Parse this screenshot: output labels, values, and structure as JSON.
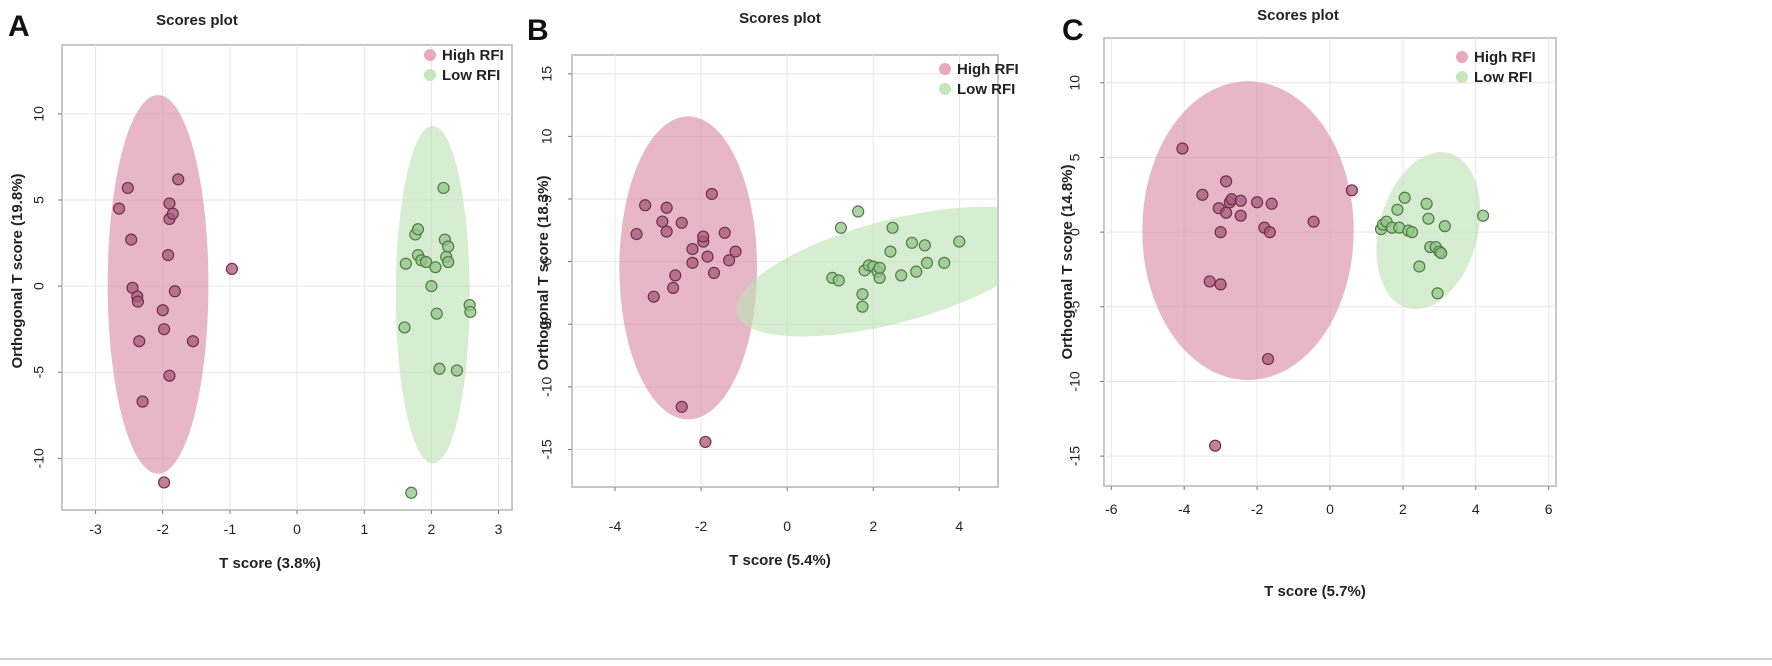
{
  "colors": {
    "high_fill": "#d98aa5",
    "high_point": "#a85a78",
    "high_point_stroke": "#6e2f4a",
    "low_fill": "#bfe2b4",
    "low_point": "#93c488",
    "low_point_stroke": "#4f7c47",
    "legend_high": "#e7a9bd",
    "legend_low": "#c5e6bb"
  },
  "chart_data": [
    {
      "type": "scatter",
      "panel": "A",
      "title": "Scores plot",
      "xlabel": "T score (3.8%)",
      "ylabel": "Orthogonal T score (19.8%)",
      "xlim": [
        -3.5,
        3.2
      ],
      "ylim": [
        -13,
        14
      ],
      "xticks": [
        -3,
        -2,
        -1,
        0,
        1,
        2,
        3
      ],
      "yticks": [
        -10,
        -5,
        0,
        5,
        10
      ],
      "xtick_labels": [
        "-3",
        "-2",
        "-1",
        "0",
        "1",
        "2",
        "3"
      ],
      "ytick_labels": [
        "-10",
        "-5",
        "0",
        "5",
        "10"
      ],
      "grid": true,
      "legend_position": "top-right",
      "series": [
        {
          "name": "High RFI",
          "ellipse": {
            "cx": -2.07,
            "cy": 0.1,
            "rx": 0.75,
            "ry": 11.0,
            "angle": 0
          },
          "points": [
            [
              -2.65,
              4.5
            ],
            [
              -2.52,
              5.7
            ],
            [
              -2.47,
              2.7
            ],
            [
              -2.45,
              -0.1
            ],
            [
              -2.38,
              -0.6
            ],
            [
              -2.37,
              -0.9
            ],
            [
              -2.35,
              -3.2
            ],
            [
              -2.3,
              -6.7
            ],
            [
              -2.0,
              -1.4
            ],
            [
              -1.98,
              -2.5
            ],
            [
              -1.9,
              -5.2
            ],
            [
              -1.92,
              1.8
            ],
            [
              -1.9,
              3.9
            ],
            [
              -1.9,
              4.8
            ],
            [
              -1.85,
              4.2
            ],
            [
              -1.82,
              -0.3
            ],
            [
              -1.77,
              6.2
            ],
            [
              -1.55,
              -3.2
            ],
            [
              -1.98,
              -11.4
            ],
            [
              -0.97,
              1.0
            ]
          ]
        },
        {
          "name": "Low RFI",
          "ellipse": {
            "cx": 2.02,
            "cy": -0.5,
            "rx": 0.55,
            "ry": 9.8,
            "angle": 0
          },
          "points": [
            [
              1.6,
              -2.4
            ],
            [
              1.62,
              1.3
            ],
            [
              1.7,
              -12.0
            ],
            [
              1.76,
              3.0
            ],
            [
              1.8,
              3.3
            ],
            [
              1.8,
              1.8
            ],
            [
              1.85,
              1.5
            ],
            [
              1.92,
              1.4
            ],
            [
              2.0,
              0.0
            ],
            [
              2.06,
              1.1
            ],
            [
              2.08,
              -1.6
            ],
            [
              2.12,
              -4.8
            ],
            [
              2.18,
              5.7
            ],
            [
              2.2,
              2.7
            ],
            [
              2.22,
              1.7
            ],
            [
              2.25,
              2.3
            ],
            [
              2.25,
              1.4
            ],
            [
              2.38,
              -4.9
            ],
            [
              2.57,
              -1.1
            ],
            [
              2.58,
              -1.5
            ]
          ]
        }
      ]
    },
    {
      "type": "scatter",
      "panel": "B",
      "title": "Scores plot",
      "xlabel": "T score (5.4%)",
      "ylabel": "Orthogonal T score (18.3%)",
      "xlim": [
        -5,
        4.9
      ],
      "ylim": [
        -18,
        16.5
      ],
      "xticks": [
        -4,
        -2,
        0,
        2,
        4
      ],
      "yticks": [
        -15,
        -10,
        -5,
        0,
        5,
        10,
        15
      ],
      "xtick_labels": [
        "-4",
        "-2",
        "0",
        "2",
        "4"
      ],
      "ytick_labels": [
        "-15",
        "-10",
        "-5",
        "0",
        "5",
        "10",
        "15"
      ],
      "grid": true,
      "legend_position": "top-right",
      "series": [
        {
          "name": "High RFI",
          "ellipse": {
            "cx": -2.3,
            "cy": -0.5,
            "rx": 1.6,
            "ry": 12.1,
            "angle": 0
          },
          "points": [
            [
              -3.5,
              2.2
            ],
            [
              -3.3,
              4.5
            ],
            [
              -3.1,
              -2.8
            ],
            [
              -2.9,
              3.2
            ],
            [
              -2.8,
              4.3
            ],
            [
              -2.8,
              2.4
            ],
            [
              -2.6,
              -1.1
            ],
            [
              -2.65,
              -2.1
            ],
            [
              -2.45,
              3.1
            ],
            [
              -2.45,
              -11.6
            ],
            [
              -2.2,
              1.0
            ],
            [
              -2.2,
              -0.1
            ],
            [
              -1.95,
              1.6
            ],
            [
              -1.95,
              2.0
            ],
            [
              -1.85,
              0.4
            ],
            [
              -1.75,
              5.4
            ],
            [
              -1.7,
              -0.9
            ],
            [
              -1.45,
              2.3
            ],
            [
              -1.35,
              0.1
            ],
            [
              -1.2,
              0.8
            ],
            [
              -1.9,
              -14.4
            ]
          ]
        },
        {
          "name": "Low RFI",
          "ellipse": {
            "cx": 2.45,
            "cy": -0.8,
            "rx": 3.75,
            "ry": 4.1,
            "angle": -15
          },
          "points": [
            [
              1.05,
              -1.3
            ],
            [
              1.2,
              -1.5
            ],
            [
              1.25,
              2.7
            ],
            [
              1.65,
              4.0
            ],
            [
              1.75,
              -2.6
            ],
            [
              1.75,
              -3.6
            ],
            [
              1.8,
              -0.7
            ],
            [
              1.9,
              -0.3
            ],
            [
              2.0,
              -0.4
            ],
            [
              2.1,
              -0.8
            ],
            [
              2.15,
              -1.3
            ],
            [
              2.15,
              -0.5
            ],
            [
              2.4,
              0.8
            ],
            [
              2.45,
              2.7
            ],
            [
              2.65,
              -1.1
            ],
            [
              2.9,
              1.5
            ],
            [
              3.0,
              -0.8
            ],
            [
              3.2,
              1.3
            ],
            [
              3.25,
              -0.1
            ],
            [
              3.65,
              -0.1
            ],
            [
              4.0,
              1.6
            ]
          ]
        }
      ]
    },
    {
      "type": "scatter",
      "panel": "C",
      "title": "Scores plot",
      "xlabel": "T score (5.7%)",
      "ylabel": "Orthogonal T score (14.8%)",
      "xlim": [
        -6.2,
        6.2
      ],
      "ylim": [
        -17,
        13
      ],
      "xticks": [
        -6,
        -4,
        -2,
        0,
        2,
        4,
        6
      ],
      "yticks": [
        -15,
        -10,
        -5,
        0,
        5,
        10
      ],
      "xtick_labels": [
        "-6",
        "-4",
        "-2",
        "0",
        "2",
        "4",
        "6"
      ],
      "ytick_labels": [
        "-15",
        "-10",
        "-5",
        "0",
        "5",
        "10"
      ],
      "grid": true,
      "legend_position": "top-right",
      "series": [
        {
          "name": "High RFI",
          "ellipse": {
            "cx": -2.25,
            "cy": 0.1,
            "rx": 2.9,
            "ry": 10.0,
            "angle": 0
          },
          "points": [
            [
              -4.05,
              5.6
            ],
            [
              -3.5,
              2.5
            ],
            [
              -3.3,
              -3.3
            ],
            [
              -3.15,
              -14.3
            ],
            [
              -3.05,
              1.6
            ],
            [
              -3.0,
              0.0
            ],
            [
              -3.0,
              -3.5
            ],
            [
              -2.85,
              3.4
            ],
            [
              -2.75,
              2.0
            ],
            [
              -2.7,
              2.2
            ],
            [
              -2.85,
              1.3
            ],
            [
              -2.45,
              2.1
            ],
            [
              -2.45,
              1.1
            ],
            [
              -2.0,
              2.0
            ],
            [
              -1.8,
              0.3
            ],
            [
              -1.65,
              0.0
            ],
            [
              -1.6,
              1.9
            ],
            [
              -1.7,
              -8.5
            ],
            [
              -0.45,
              0.7
            ],
            [
              0.6,
              2.8
            ]
          ]
        },
        {
          "name": "Low RFI",
          "ellipse": {
            "cx": 2.7,
            "cy": 0.1,
            "rx": 2.2,
            "ry": 3.3,
            "angle": -75
          },
          "points": [
            [
              1.4,
              0.2
            ],
            [
              1.45,
              0.5
            ],
            [
              1.55,
              0.7
            ],
            [
              1.7,
              0.3
            ],
            [
              1.85,
              1.5
            ],
            [
              1.9,
              0.3
            ],
            [
              2.05,
              2.3
            ],
            [
              2.15,
              0.1
            ],
            [
              2.25,
              0.0
            ],
            [
              2.45,
              -2.3
            ],
            [
              2.65,
              1.9
            ],
            [
              2.7,
              0.9
            ],
            [
              2.75,
              -1.0
            ],
            [
              2.9,
              -1.0
            ],
            [
              2.95,
              -4.1
            ],
            [
              3.0,
              -1.3
            ],
            [
              3.05,
              -1.4
            ],
            [
              3.15,
              0.4
            ],
            [
              4.2,
              1.1
            ]
          ]
        }
      ]
    }
  ]
}
